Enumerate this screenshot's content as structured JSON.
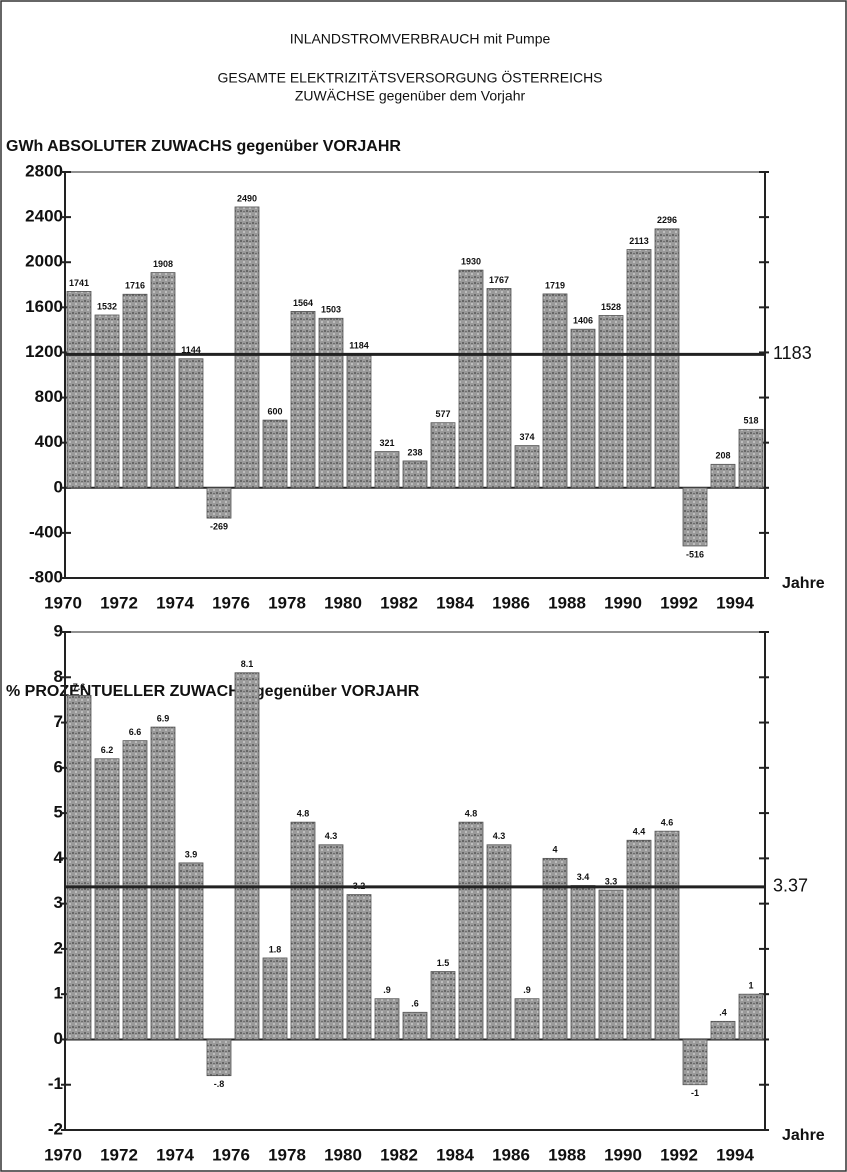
{
  "header": {
    "title": "INLANDSTROMVERBRAUCH mit Pumpe",
    "subtitle": "GESAMTE ELEKTRIZITÄTSVERSORGUNG ÖSTERREICHS",
    "subtitle2": "ZUWÄCHSE gegenüber dem Vorjahr"
  },
  "chart_data": [
    {
      "type": "bar",
      "y_label": "GWh  ABSOLUTER  ZUWACHS  gegenüber  VORJAHR",
      "x_label": "Jahre",
      "categories": [
        "1970",
        null,
        "1972",
        null,
        "1974",
        null,
        "1976",
        null,
        "1978",
        null,
        "1980",
        null,
        "1982",
        null,
        "1984",
        null,
        "1986",
        null,
        "1988",
        null,
        "1990",
        null,
        "1992",
        null,
        "1994"
      ],
      "values": [
        1741,
        1532,
        1716,
        1908,
        1144,
        -269,
        2490,
        600,
        1564,
        1503,
        1184,
        321,
        238,
        577,
        1930,
        1767,
        374,
        1719,
        1406,
        1528,
        2113,
        2296,
        -516,
        208,
        518
      ],
      "color": "#8c8c8c",
      "ylim": [
        -800,
        2800
      ],
      "yticks": [
        -800,
        -400,
        0,
        400,
        800,
        1200,
        1600,
        2000,
        2400,
        2800
      ],
      "mean_line": 1183
    },
    {
      "type": "bar",
      "y_label": "% PROZENTUELLER  ZUWACHS  gegenüber  VORJAHR",
      "x_label": "Jahre",
      "categories": [
        "1970",
        null,
        "1972",
        null,
        "1974",
        null,
        "1976",
        null,
        "1978",
        null,
        "1980",
        null,
        "1982",
        null,
        "1984",
        null,
        "1986",
        null,
        "1988",
        null,
        "1990",
        null,
        "1992",
        null,
        "1994"
      ],
      "values": [
        7.6,
        6.2,
        6.6,
        6.9,
        3.9,
        -0.8,
        8.1,
        1.8,
        4.8,
        4.3,
        3.2,
        0.9,
        0.6,
        1.5,
        4.8,
        4.3,
        0.9,
        4,
        3.4,
        3.3,
        4.4,
        4.6,
        -1,
        0.4,
        1
      ],
      "value_labels": [
        "7.6",
        "6.2",
        "6.6",
        "6.9",
        "3.9",
        "-.8",
        "8.1",
        "1.8",
        "4.8",
        "4.3",
        "3.2",
        ".9",
        ".6",
        "1.5",
        "4.8",
        "4.3",
        ".9",
        "4",
        "3.4",
        "3.3",
        "4.4",
        "4.6",
        "-1",
        ".4",
        "1"
      ],
      "color": "#8c8c8c",
      "ylim": [
        -2,
        9
      ],
      "yticks": [
        -2,
        -1,
        0,
        1,
        2,
        3,
        4,
        5,
        6,
        7,
        8,
        9
      ],
      "mean_line": 3.37
    }
  ]
}
